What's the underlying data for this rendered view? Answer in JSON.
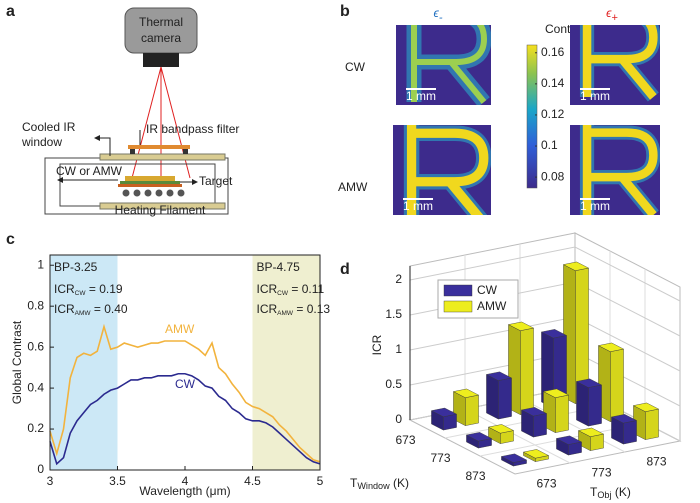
{
  "figure": {
    "panel_labels": [
      "a",
      "b",
      "c",
      "d"
    ]
  },
  "diagram": {
    "camera": [
      "Thermal",
      "camera"
    ],
    "window": [
      "Cooled IR",
      "window"
    ],
    "filter": "IR bandpass filter",
    "modulation": "CW or AMW",
    "target": "Target",
    "heater": "Heating Filament"
  },
  "maps": {
    "columns": [
      {
        "symbol": "ϵ",
        "sub": "-",
        "color": "#1f6fc0"
      },
      {
        "symbol": "ϵ",
        "sub": "+",
        "color": "#e02020"
      }
    ],
    "rows": [
      "CW",
      "AMW"
    ],
    "scale_bar": "1 mm",
    "colorbar": {
      "label": "Contrast",
      "ylim": [
        0.073,
        0.165
      ],
      "ticks": [
        0.08,
        0.1,
        0.12,
        0.14,
        0.16
      ]
    }
  },
  "chart_data": [
    {
      "type": "line",
      "xlabel": "Wavelength (μm)",
      "ylabel": "Global Contrast",
      "x": [
        3,
        3.05,
        3.1,
        3.15,
        3.2,
        3.25,
        3.3,
        3.35,
        3.4,
        3.45,
        3.5,
        3.55,
        3.6,
        3.65,
        3.7,
        3.75,
        3.8,
        3.85,
        3.9,
        3.95,
        4,
        4.05,
        4.1,
        4.15,
        4.2,
        4.25,
        4.3,
        4.35,
        4.4,
        4.45,
        4.5,
        4.55,
        4.6,
        4.65,
        4.7,
        4.75,
        4.8,
        4.85,
        4.9,
        4.95,
        5
      ],
      "series": [
        {
          "name": "AMW",
          "color": "#f2b33d",
          "values": [
            0.19,
            0.08,
            0.2,
            0.45,
            0.55,
            0.57,
            0.56,
            0.58,
            0.7,
            0.59,
            0.6,
            0.62,
            0.61,
            0.6,
            0.61,
            0.62,
            0.62,
            0.63,
            0.63,
            0.63,
            0.63,
            0.61,
            0.59,
            0.56,
            0.62,
            0.5,
            0.47,
            0.42,
            0.38,
            0.33,
            0.31,
            0.3,
            0.28,
            0.26,
            0.22,
            0.19,
            0.15,
            0.11,
            0.08,
            0.05,
            0.04
          ]
        },
        {
          "name": "CW",
          "color": "#2b2a8f",
          "values": [
            0.14,
            0.03,
            0.06,
            0.18,
            0.24,
            0.28,
            0.32,
            0.34,
            0.37,
            0.39,
            0.4,
            0.42,
            0.44,
            0.44,
            0.45,
            0.45,
            0.46,
            0.46,
            0.46,
            0.47,
            0.47,
            0.46,
            0.44,
            0.41,
            0.4,
            0.36,
            0.34,
            0.3,
            0.28,
            0.25,
            0.24,
            0.24,
            0.23,
            0.21,
            0.18,
            0.15,
            0.12,
            0.09,
            0.06,
            0.04,
            0.03
          ]
        }
      ],
      "bands": [
        {
          "xlim": [
            3,
            3.5
          ],
          "color": "#cce8f6",
          "label": "BP-3.25",
          "notes": [
            {
              "base": "ICR",
              "sub": "CW",
              "rest": " = 0.19"
            },
            {
              "base": "ICR",
              "sub": "AMW",
              "rest": " = 0.40"
            }
          ]
        },
        {
          "xlim": [
            4.5,
            5
          ],
          "color": "#efefd0",
          "label": "BP-4.75",
          "notes": [
            {
              "base": "ICR",
              "sub": "CW",
              "rest": " = 0.11"
            },
            {
              "base": "ICR",
              "sub": "AMW",
              "rest": " = 0.13"
            }
          ]
        }
      ],
      "xlim": [
        3,
        5
      ],
      "ylim": [
        0,
        1.05
      ],
      "xticks": [
        3,
        3.5,
        4,
        4.5,
        5
      ],
      "yticks": [
        0,
        0.2,
        0.4,
        0.6,
        0.8,
        1
      ]
    },
    {
      "type": "bar3d",
      "zlabel": "ICR",
      "xlabel": {
        "base": "T",
        "sub": "Window",
        "rest": " (K)"
      },
      "ylabel": {
        "base": "T",
        "sub": "Obj",
        "rest": " (K)"
      },
      "window_categories": [
        673,
        773,
        873
      ],
      "obj_categories": [
        673,
        773,
        873
      ],
      "zlim": [
        0,
        2.2
      ],
      "zticks": [
        0,
        0.5,
        1,
        1.5,
        2
      ],
      "series": [
        {
          "name": "CW",
          "color": "#3a2f9c",
          "values": [
            [
              0.19,
              0.55,
              1.0
            ],
            [
              0.1,
              0.3,
              0.55
            ],
            [
              0.05,
              0.15,
              0.3
            ]
          ]
        },
        {
          "name": "AMW",
          "color": "#eded1e",
          "values": [
            [
              0.4,
              1.2,
              1.9
            ],
            [
              0.15,
              0.5,
              1.0
            ],
            [
              0.05,
              0.2,
              0.4
            ]
          ]
        }
      ]
    }
  ]
}
